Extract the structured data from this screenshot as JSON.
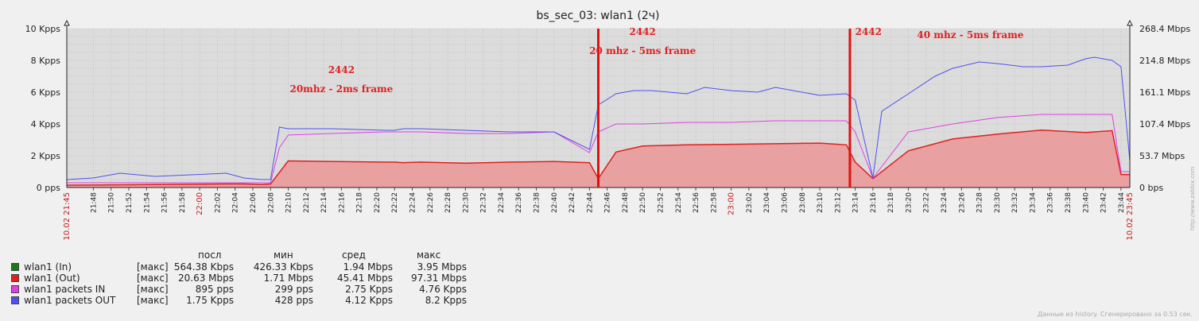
{
  "chart_data": {
    "type": "area",
    "title": "bs_sec_03: wlan1 (2ч)",
    "y_left": {
      "ticks": [
        "0 pps",
        "2 Kpps",
        "4 Kpps",
        "6 Kpps",
        "8 Kpps",
        "10 Kpps"
      ],
      "range": [
        0,
        10
      ]
    },
    "y_right": {
      "ticks": [
        "0 bps",
        "53.7 Mbps",
        "107.4 Mbps",
        "161.1 Mbps",
        "214.8 Mbps",
        "268.4 Mbps"
      ],
      "range": [
        0,
        268.4
      ]
    },
    "x_ticks": [
      "21:48",
      "21:50",
      "21:52",
      "21:54",
      "21:56",
      "21:58",
      "22:00",
      "22:02",
      "22:04",
      "22:06",
      "22:08",
      "22:10",
      "22:12",
      "22:14",
      "22:16",
      "22:18",
      "22:20",
      "22:22",
      "22:24",
      "22:26",
      "22:28",
      "22:30",
      "22:32",
      "22:34",
      "22:36",
      "22:38",
      "22:40",
      "22:42",
      "22:44",
      "22:46",
      "22:48",
      "22:50",
      "22:52",
      "22:54",
      "22:56",
      "22:58",
      "23:00",
      "23:02",
      "23:04",
      "23:06",
      "23:08",
      "23:10",
      "23:12",
      "23:14",
      "23:16",
      "23:18",
      "23:20",
      "23:22",
      "23:24",
      "23:26",
      "23:28",
      "23:30",
      "23:32",
      "23:34",
      "23:36",
      "23:38",
      "23:40",
      "23:42",
      "23:44"
    ],
    "x_red_ticks": [
      "22:00",
      "23:00"
    ],
    "x_start_label": "10.02 21:45",
    "x_end_label": "10.02 23:45",
    "x_range_minutes": [
      0,
      120
    ],
    "grid": true,
    "series": [
      {
        "name": "wlan1 (In)",
        "color": "#1a7a1a",
        "axis": "right",
        "x": [
          0,
          37,
          38,
          59,
          60,
          61,
          88,
          89,
          90,
          120
        ],
        "values": [
          2,
          2,
          4,
          4,
          2,
          4,
          4,
          2,
          4,
          3
        ]
      },
      {
        "name": "wlan1 (Out)",
        "color": "#e02020",
        "axis": "right",
        "fill": true,
        "x": [
          0,
          10,
          18,
          20,
          22,
          23,
          25,
          30,
          36,
          37,
          38,
          40,
          45,
          50,
          55,
          59,
          60,
          62,
          65,
          70,
          75,
          80,
          85,
          88,
          89,
          91,
          95,
          100,
          105,
          110,
          115,
          118,
          119,
          120
        ],
        "values": [
          4,
          5,
          6,
          6,
          5,
          6,
          45,
          44,
          43,
          43,
          42,
          43,
          41,
          43,
          44,
          42,
          15,
          60,
          70,
          72,
          73,
          74,
          75,
          72,
          43,
          15,
          62,
          82,
          90,
          97,
          93,
          96,
          22,
          22
        ]
      },
      {
        "name": "wlan1 packets IN",
        "color": "#e040e0",
        "axis": "left",
        "x": [
          0,
          10,
          18,
          20,
          22,
          23,
          24,
          25,
          30,
          36,
          37,
          38,
          40,
          45,
          50,
          55,
          59,
          60,
          62,
          65,
          70,
          75,
          80,
          85,
          88,
          89,
          91,
          95,
          100,
          105,
          110,
          115,
          118,
          119,
          120
        ],
        "values": [
          0.3,
          0.3,
          0.3,
          0.3,
          0.3,
          0.3,
          2.5,
          3.3,
          3.4,
          3.5,
          3.5,
          3.5,
          3.5,
          3.4,
          3.4,
          3.5,
          2.2,
          3.5,
          4.0,
          4.0,
          4.1,
          4.1,
          4.2,
          4.2,
          4.2,
          3.5,
          0.6,
          3.5,
          4.0,
          4.4,
          4.6,
          4.6,
          4.6,
          1.0,
          1.0
        ]
      },
      {
        "name": "wlan1 packets OUT",
        "color": "#5050f0",
        "axis": "left",
        "x": [
          0,
          3,
          6,
          10,
          14,
          18,
          20,
          22,
          23,
          24,
          25,
          30,
          36,
          37,
          38,
          40,
          45,
          50,
          55,
          59,
          60,
          62,
          64,
          66,
          70,
          72,
          75,
          78,
          80,
          85,
          88,
          89,
          91,
          92,
          95,
          98,
          100,
          103,
          105,
          108,
          110,
          113,
          115,
          116,
          118,
          119,
          120
        ],
        "values": [
          0.5,
          0.6,
          0.9,
          0.7,
          0.8,
          0.9,
          0.6,
          0.5,
          0.5,
          3.8,
          3.7,
          3.7,
          3.6,
          3.6,
          3.7,
          3.7,
          3.6,
          3.5,
          3.5,
          2.4,
          5.2,
          5.9,
          6.1,
          6.1,
          5.9,
          6.3,
          6.1,
          6.0,
          6.3,
          5.8,
          5.9,
          5.5,
          0.6,
          4.8,
          5.9,
          7.0,
          7.5,
          7.9,
          7.8,
          7.6,
          7.6,
          7.7,
          8.1,
          8.2,
          8.0,
          7.6,
          1.7
        ]
      }
    ],
    "markers": [
      {
        "x": 60,
        "color": "#e01010"
      },
      {
        "x": 88.4,
        "color": "#e01010"
      }
    ],
    "annotations": [
      {
        "text": "2442",
        "x": 31,
        "y": 7.2
      },
      {
        "text": "20mhz - 2ms frame",
        "x": 31,
        "y": 6.0
      },
      {
        "text": "2442",
        "x": 65,
        "y": 9.6
      },
      {
        "text": "20 mhz - 5ms frame",
        "x": 65,
        "y": 8.4
      },
      {
        "text": "2442",
        "x": 90.5,
        "y": 9.6
      },
      {
        "text": "40 mhz - 5ms frame",
        "x": 102,
        "y": 9.4
      }
    ]
  },
  "legend": {
    "headers": [
      "посл",
      "мин",
      "сред",
      "макс"
    ],
    "rows": [
      {
        "name": "wlan1 (In)",
        "agg": "[макс]",
        "color": "#1a7a1a",
        "last": "564.38 Kbps",
        "min": "426.33 Kbps",
        "avg": "1.94 Mbps",
        "max": "3.95 Mbps"
      },
      {
        "name": "wlan1 (Out)",
        "agg": "[макс]",
        "color": "#e02020",
        "last": "20.63 Mbps",
        "min": "1.71 Mbps",
        "avg": "45.41 Mbps",
        "max": "97.31 Mbps"
      },
      {
        "name": "wlan1 packets IN",
        "agg": "[макс]",
        "color": "#e040e0",
        "last": "895 pps",
        "min": "299 pps",
        "avg": "2.75 Kpps",
        "max": "4.76 Kpps"
      },
      {
        "name": "wlan1 packets OUT",
        "agg": "[макс]",
        "color": "#5050f0",
        "last": "1.75 Kpps",
        "min": "428 pps",
        "avg": "4.12 Kpps",
        "max": "8.2 Kpps"
      }
    ]
  },
  "footer": "Данные из history. Сгенерировано за 0.53 сек.",
  "side_label": "http://www.zabbix.com"
}
